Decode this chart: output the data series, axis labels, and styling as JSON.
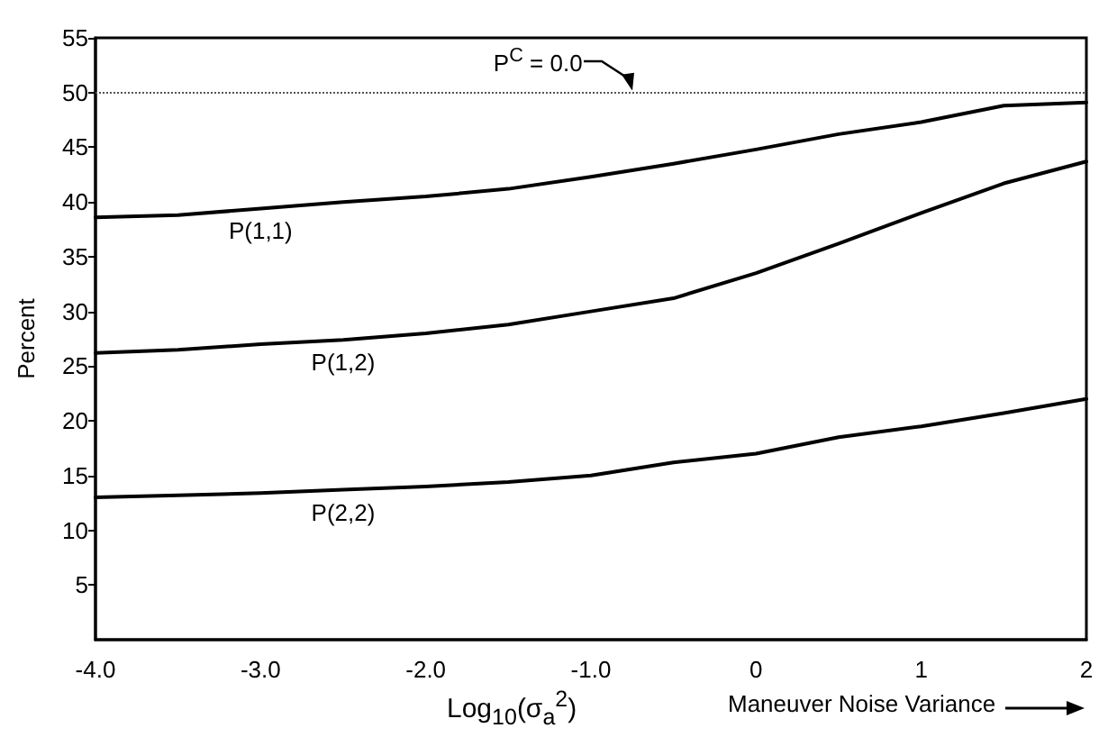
{
  "chart_data": {
    "type": "line",
    "xlabel": "Log$_{10}$(σ$_{a}$$^{2}$)",
    "ylabel": "Percent",
    "annotations": [
      "Maneuver Noise Variance",
      {
        "text": "P$^{C}$ = 0.0",
        "x": -0.75,
        "y": 50
      }
    ],
    "xlim": [
      -4,
      2
    ],
    "xticks": [
      {
        "value": -4,
        "label": "-4.0"
      },
      {
        "value": -3,
        "label": "-3.0"
      },
      {
        "value": -2,
        "label": "-2.0"
      },
      {
        "value": -1,
        "label": "-1.0"
      },
      0,
      1,
      2
    ],
    "ylim": [
      0,
      55
    ],
    "yticks": [
      5,
      10,
      15,
      20,
      25,
      30,
      35,
      40,
      45,
      50,
      55
    ],
    "x": [
      -4,
      -3.5,
      -3,
      -2.5,
      -2,
      -1.5,
      -1,
      -0.5,
      0,
      0.5,
      1,
      1.5,
      2
    ],
    "series": [
      {
        "name": "P(1,1)",
        "color": "#000000",
        "values": [
          38.6,
          38.8,
          39.4,
          40,
          40.5,
          41.2,
          42.3,
          43.5,
          44.8,
          46.2,
          47.3,
          48.8,
          49.1
        ]
      },
      {
        "name": "P(1,2)",
        "color": "#000000",
        "values": [
          26.2,
          26.5,
          27,
          27.4,
          28,
          28.8,
          30,
          31.2,
          33.5,
          36.2,
          39,
          41.7,
          43.7
        ]
      },
      {
        "name": "P(2,2)",
        "color": "#000000",
        "values": [
          13,
          13.2,
          13.4,
          13.7,
          14,
          14.4,
          15,
          16.2,
          17,
          18.5,
          19.5,
          20.7,
          22
        ]
      }
    ],
    "ref_lines": [
      {
        "axis": "y",
        "value": 50,
        "color": "#555555",
        "line_style": "dotted"
      }
    ],
    "grid": false,
    "legend": false,
    "marker": "none",
    "line_style": "solid"
  }
}
